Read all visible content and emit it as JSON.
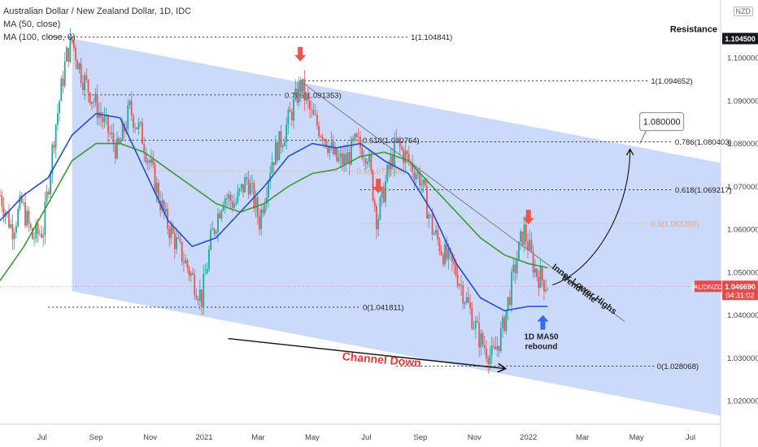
{
  "header": {
    "title": "Australian Dollar / New Zealand Dollar, 1D, IDC",
    "ma1": "MA (50, close)",
    "ma2": "MA (100, close, 0)",
    "currency": "NZD"
  },
  "colors": {
    "channel_fill": "#bcd0f8",
    "up_candle": "#26a69a",
    "down_candle": "#ef5350",
    "ma50": "#1e4fd8",
    "ma100": "#3a9a3a",
    "price_badge": "#e84a4a",
    "red_arrow": "#f0554a",
    "blue_arrow": "#2c6df2",
    "orange_level": "#f0a070"
  },
  "chart_data": {
    "type": "candlestick",
    "symbol": "AUDNZD",
    "timeframe": "1D",
    "x_ticks": [
      "Jul",
      "Sep",
      "Nov",
      "2021",
      "Mar",
      "May",
      "Jul",
      "Sep",
      "Nov",
      "2022",
      "Mar",
      "May",
      "Jul"
    ],
    "y_ticks": [
      "1.100000",
      "1.090000",
      "1.080000",
      "1.070000",
      "1.060000",
      "1.050000",
      "1.040000",
      "1.030000",
      "1.020000"
    ],
    "ylim": [
      1.0145,
      1.1135
    ],
    "close_path": [
      [
        0,
        1.068
      ],
      [
        10,
        1.06
      ],
      [
        18,
        1.066
      ],
      [
        27,
        1.058
      ],
      [
        36,
        1.06
      ],
      [
        45,
        1.082
      ],
      [
        55,
        1.1
      ],
      [
        60,
        1.104
      ],
      [
        68,
        1.096
      ],
      [
        78,
        1.09
      ],
      [
        88,
        1.084
      ],
      [
        98,
        1.078
      ],
      [
        108,
        1.088
      ],
      [
        118,
        1.082
      ],
      [
        128,
        1.072
      ],
      [
        138,
        1.062
      ],
      [
        148,
        1.056
      ],
      [
        158,
        1.05
      ],
      [
        168,
        1.044
      ],
      [
        176,
        1.058
      ],
      [
        186,
        1.068
      ],
      [
        196,
        1.066
      ],
      [
        206,
        1.072
      ],
      [
        216,
        1.062
      ],
      [
        226,
        1.076
      ],
      [
        236,
        1.082
      ],
      [
        246,
        1.09
      ],
      [
        250,
        1.094
      ],
      [
        260,
        1.086
      ],
      [
        270,
        1.082
      ],
      [
        280,
        1.076
      ],
      [
        288,
        1.076
      ],
      [
        296,
        1.08
      ],
      [
        306,
        1.078
      ],
      [
        314,
        1.062
      ],
      [
        322,
        1.072
      ],
      [
        330,
        1.08
      ],
      [
        340,
        1.076
      ],
      [
        350,
        1.072
      ],
      [
        360,
        1.06
      ],
      [
        370,
        1.054
      ],
      [
        380,
        1.05
      ],
      [
        390,
        1.042
      ],
      [
        400,
        1.034
      ],
      [
        410,
        1.03
      ],
      [
        418,
        1.036
      ],
      [
        428,
        1.05
      ],
      [
        436,
        1.06
      ],
      [
        446,
        1.05
      ],
      [
        456,
        1.047
      ]
    ],
    "ma50": [
      [
        0,
        1.062
      ],
      [
        20,
        1.068
      ],
      [
        40,
        1.072
      ],
      [
        60,
        1.082
      ],
      [
        80,
        1.087
      ],
      [
        100,
        1.086
      ],
      [
        120,
        1.074
      ],
      [
        140,
        1.062
      ],
      [
        160,
        1.056
      ],
      [
        180,
        1.058
      ],
      [
        200,
        1.064
      ],
      [
        220,
        1.07
      ],
      [
        240,
        1.077
      ],
      [
        260,
        1.08
      ],
      [
        280,
        1.079
      ],
      [
        300,
        1.08
      ],
      [
        320,
        1.076
      ],
      [
        340,
        1.073
      ],
      [
        360,
        1.064
      ],
      [
        380,
        1.052
      ],
      [
        400,
        1.044
      ],
      [
        420,
        1.041
      ],
      [
        440,
        1.042
      ],
      [
        456,
        1.042
      ]
    ],
    "ma100": [
      [
        0,
        1.048
      ],
      [
        20,
        1.056
      ],
      [
        40,
        1.066
      ],
      [
        60,
        1.076
      ],
      [
        80,
        1.08
      ],
      [
        100,
        1.08
      ],
      [
        120,
        1.078
      ],
      [
        140,
        1.074
      ],
      [
        160,
        1.07
      ],
      [
        180,
        1.066
      ],
      [
        200,
        1.064
      ],
      [
        220,
        1.066
      ],
      [
        240,
        1.07
      ],
      [
        260,
        1.073
      ],
      [
        280,
        1.074
      ],
      [
        300,
        1.077
      ],
      [
        320,
        1.078
      ],
      [
        340,
        1.076
      ],
      [
        360,
        1.07
      ],
      [
        380,
        1.064
      ],
      [
        400,
        1.058
      ],
      [
        420,
        1.054
      ],
      [
        440,
        1.052
      ],
      [
        456,
        1.051
      ]
    ],
    "channel": {
      "upper": [
        [
          60,
          1.1045
        ],
        [
          600,
          1.0755
        ]
      ],
      "lower": [
        [
          60,
          1.0455
        ],
        [
          600,
          1.0165
        ]
      ]
    },
    "trendline": {
      "from": [
        250,
        1.0946
      ],
      "to": [
        520,
        1.0385
      ],
      "label": "Inner Lower Highs trend-line"
    },
    "projection": {
      "from": [
        456,
        1.047
      ],
      "to": [
        530,
        1.08
      ],
      "label": "1.080000"
    },
    "levels": [
      {
        "label": "1(1.104841)",
        "price": 1.104841,
        "x_start": 40,
        "x_end": 340,
        "style": "dotted"
      },
      {
        "label": "1(1.094652)",
        "price": 1.094652,
        "x_start": 250,
        "x_end": 540,
        "style": "dotted"
      },
      {
        "label": "0.786(1.091353)",
        "price": 1.091353,
        "x_start": 70,
        "x_end": 235,
        "style": "dotted"
      },
      {
        "label": "0.618(1.080764)",
        "price": 1.080764,
        "x_start": 90,
        "x_end": 300,
        "style": "dotted"
      },
      {
        "label": "0.786(1.080403)",
        "price": 1.080403,
        "x_start": 310,
        "x_end": 560,
        "style": "dotted"
      },
      {
        "label": "0.5(1.073545)",
        "price": 1.073545,
        "x_start": 120,
        "x_end": 295,
        "style": "orange"
      },
      {
        "label": "0.618(1.069217)",
        "price": 1.069217,
        "x_start": 300,
        "x_end": 560,
        "style": "dotted"
      },
      {
        "label": "0.5(1.061360)",
        "price": 1.06136,
        "x_start": 300,
        "x_end": 540,
        "style": "orange"
      },
      {
        "label": "0(1.041811)",
        "price": 1.041811,
        "x_start": 40,
        "x_end": 300,
        "style": "dotted"
      },
      {
        "label": "0(1.028068)",
        "price": 1.028068,
        "x_start": 330,
        "x_end": 545,
        "style": "dotted"
      }
    ],
    "resistance": {
      "label": "Resistance",
      "price": 1.1045,
      "price_label": "1.104500"
    },
    "current_price": {
      "symbol": "AUDNZD",
      "price": 1.04669,
      "price_label": "1.046690",
      "countdown": "04:31:02"
    },
    "annotations": [
      {
        "text": "1D MA50 rebound"
      },
      {
        "text": "Channel Down"
      }
    ],
    "red_arrows_x": [
      250,
      315,
      440
    ],
    "blue_arrow_x": 452,
    "channel_down_arrow": {
      "from": [
        190,
        1.0345
      ],
      "to": [
        420,
        1.0275
      ]
    }
  }
}
